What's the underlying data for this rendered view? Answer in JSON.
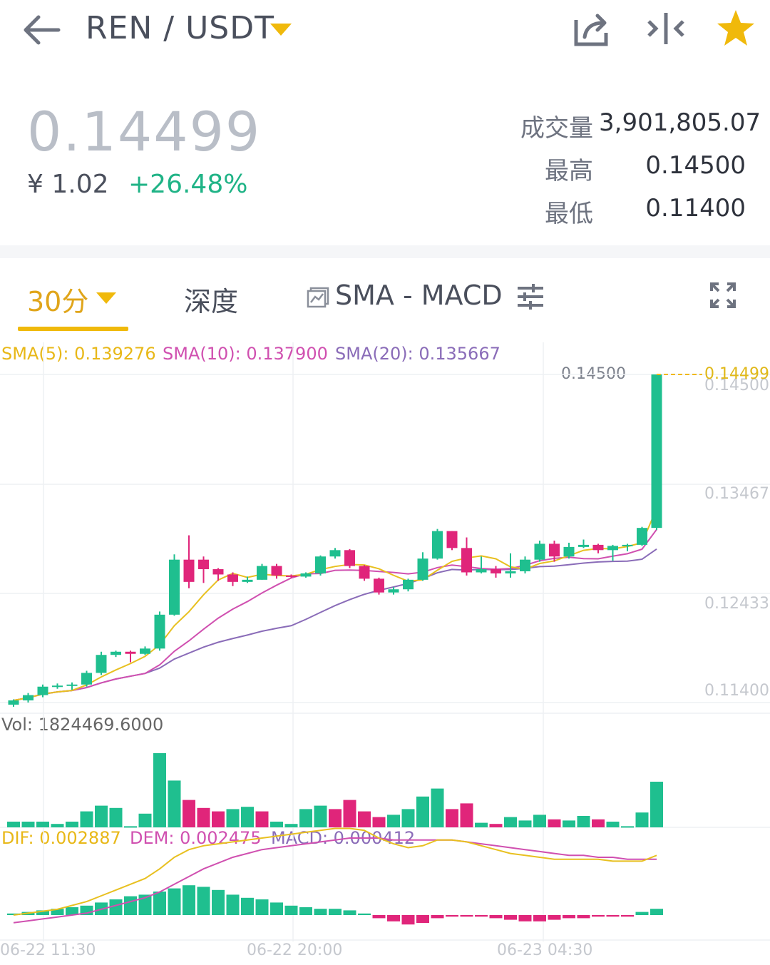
{
  "header": {
    "pair": "REN / USDT",
    "icons": [
      "back-arrow-icon",
      "share-icon",
      "compare-icon",
      "star-icon"
    ]
  },
  "ticker": {
    "price": "0.14499",
    "cny": "¥ 1.02",
    "change": "+26.48%",
    "volume_label": "成交量",
    "volume_value": "3,901,805.07",
    "high_label": "最高",
    "high_value": "0.14500",
    "low_label": "最低",
    "low_value": "0.11400"
  },
  "tabs": {
    "interval": "30分",
    "depth": "深度",
    "indicators": "SMA - MACD"
  },
  "legend": {
    "sma5": "SMA(5): 0.139276",
    "sma10": "SMA(10): 0.137900",
    "sma20": "SMA(20): 0.135667",
    "vol": "Vol: 1824469.6000",
    "dif": "DIF: 0.002887",
    "dem": "DEM: 0.002475",
    "macd": "MACD: 0.000412"
  },
  "price_axis": {
    "high_marker": "0.14500",
    "current": "0.14499",
    "levels": [
      "0.14500",
      "0.13467",
      "0.12433",
      "0.11400"
    ]
  },
  "colors": {
    "up": "#1fbf8f",
    "down": "#e0257a",
    "accent": "#f0b90b",
    "sma5": "#e8c020",
    "sma10": "#d050b0",
    "sma20": "#8a6cb8"
  },
  "chart_data": {
    "type": "candlestick",
    "x_ticks": [
      "06-22 11:30",
      "06-22 20:00",
      "06-23 04:30"
    ],
    "ylim": [
      0.114,
      0.145
    ],
    "candles": [
      [
        0.1138,
        0.1142,
        0.1136,
        0.1143
      ],
      [
        0.1142,
        0.1147,
        0.114,
        0.1149
      ],
      [
        0.1147,
        0.1155,
        0.1145,
        0.1157
      ],
      [
        0.1155,
        0.1156,
        0.1153,
        0.1158
      ],
      [
        0.1156,
        0.1157,
        0.1152,
        0.1159
      ],
      [
        0.1157,
        0.1168,
        0.1155,
        0.117
      ],
      [
        0.1168,
        0.1185,
        0.1166,
        0.1188
      ],
      [
        0.1185,
        0.1188,
        0.1183,
        0.1189
      ],
      [
        0.1188,
        0.1186,
        0.1178,
        0.1189
      ],
      [
        0.1186,
        0.1191,
        0.1185,
        0.1193
      ],
      [
        0.1191,
        0.1223,
        0.1189,
        0.1226
      ],
      [
        0.1223,
        0.1275,
        0.1222,
        0.128
      ],
      [
        0.1275,
        0.1254,
        0.1248,
        0.1298
      ],
      [
        0.1275,
        0.1266,
        0.1253,
        0.1278
      ],
      [
        0.1266,
        0.1261,
        0.1255,
        0.1267
      ],
      [
        0.1261,
        0.1254,
        0.125,
        0.1263
      ],
      [
        0.1254,
        0.1256,
        0.1253,
        0.1259
      ],
      [
        0.1256,
        0.1269,
        0.1256,
        0.1271
      ],
      [
        0.1269,
        0.126,
        0.1257,
        0.1271
      ],
      [
        0.126,
        0.1259,
        0.1258,
        0.1261
      ],
      [
        0.1259,
        0.1262,
        0.1258,
        0.1263
      ],
      [
        0.1262,
        0.1278,
        0.126,
        0.1279
      ],
      [
        0.1278,
        0.1284,
        0.1276,
        0.1286
      ],
      [
        0.1284,
        0.1269,
        0.1267,
        0.1285
      ],
      [
        0.1269,
        0.1257,
        0.1255,
        0.127
      ],
      [
        0.1257,
        0.1244,
        0.1242,
        0.1258
      ],
      [
        0.1244,
        0.1247,
        0.1242,
        0.1249
      ],
      [
        0.1247,
        0.1256,
        0.1245,
        0.1257
      ],
      [
        0.1256,
        0.1276,
        0.1255,
        0.1282
      ],
      [
        0.1276,
        0.1302,
        0.1275,
        0.1304
      ],
      [
        0.1302,
        0.1286,
        0.1284,
        0.1302
      ],
      [
        0.1286,
        0.1263,
        0.126,
        0.1296
      ],
      [
        0.1263,
        0.1266,
        0.1262,
        0.1278
      ],
      [
        0.1266,
        0.1262,
        0.1258,
        0.1269
      ],
      [
        0.1262,
        0.1264,
        0.1258,
        0.1281
      ],
      [
        0.1264,
        0.1275,
        0.1262,
        0.1278
      ],
      [
        0.1275,
        0.129,
        0.1273,
        0.1293
      ],
      [
        0.129,
        0.1278,
        0.1273,
        0.1293
      ],
      [
        0.1278,
        0.1287,
        0.1276,
        0.1291
      ],
      [
        0.1287,
        0.1289,
        0.1286,
        0.1294
      ],
      [
        0.1289,
        0.1284,
        0.1281,
        0.129
      ],
      [
        0.1284,
        0.1288,
        0.1274,
        0.1289
      ],
      [
        0.1288,
        0.1289,
        0.1283,
        0.129
      ],
      [
        0.1289,
        0.1305,
        0.1288,
        0.1306
      ],
      [
        0.1305,
        0.145,
        0.1303,
        0.145
      ]
    ],
    "volumes": [
      [
        1,
        0.05
      ],
      [
        1,
        0.05
      ],
      [
        1,
        0.05
      ],
      [
        1,
        0.03
      ],
      [
        1,
        0.05
      ],
      [
        1,
        0.14
      ],
      [
        1,
        0.19
      ],
      [
        1,
        0.17
      ],
      [
        1,
        0.01
      ],
      [
        1,
        0.12
      ],
      [
        1,
        0.65
      ],
      [
        1,
        0.41
      ],
      [
        0,
        0.24
      ],
      [
        0,
        0.17
      ],
      [
        0,
        0.14
      ],
      [
        1,
        0.16
      ],
      [
        1,
        0.18
      ],
      [
        0,
        0.14
      ],
      [
        1,
        0.05
      ],
      [
        1,
        0.03
      ],
      [
        1,
        0.16
      ],
      [
        1,
        0.19
      ],
      [
        0,
        0.16
      ],
      [
        0,
        0.24
      ],
      [
        0,
        0.14
      ],
      [
        0,
        0.09
      ],
      [
        1,
        0.11
      ],
      [
        1,
        0.16
      ],
      [
        1,
        0.27
      ],
      [
        1,
        0.34
      ],
      [
        0,
        0.16
      ],
      [
        0,
        0.21
      ],
      [
        1,
        0.04
      ],
      [
        0,
        0.03
      ],
      [
        1,
        0.09
      ],
      [
        1,
        0.06
      ],
      [
        1,
        0.11
      ],
      [
        0,
        0.07
      ],
      [
        1,
        0.06
      ],
      [
        1,
        0.1
      ],
      [
        0,
        0.07
      ],
      [
        1,
        0.05
      ],
      [
        1,
        0.01
      ],
      [
        1,
        0.13
      ],
      [
        1,
        0.4
      ]
    ],
    "macd_hist": [
      0.0001,
      0.0002,
      0.0003,
      0.0004,
      0.0005,
      0.0006,
      0.0008,
      0.001,
      0.0012,
      0.0013,
      0.0015,
      0.0017,
      0.0019,
      0.0018,
      0.0016,
      0.0013,
      0.0011,
      0.001,
      0.0008,
      0.0006,
      0.0005,
      0.0004,
      0.0004,
      0.0003,
      0.0001,
      -0.0002,
      -0.0004,
      -0.0006,
      -0.0005,
      -0.0002,
      -0.0001,
      -0.0001,
      -0.0001,
      -0.0002,
      -0.0003,
      -0.0004,
      -0.0004,
      -0.0003,
      -0.0002,
      -0.0002,
      -0.0001,
      -0.0001,
      -0.0001,
      0.0002,
      0.0004
    ]
  }
}
